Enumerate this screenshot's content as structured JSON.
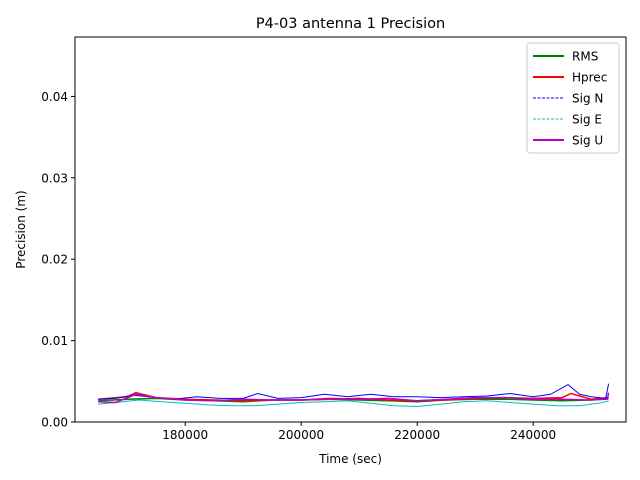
{
  "chart_data": {
    "type": "line",
    "title": "P4-03 antenna 1 Precision",
    "xlabel": "Time (sec)",
    "ylabel": "Precision (m)",
    "xlim": [
      161000,
      256000
    ],
    "ylim": [
      0.0,
      0.0473
    ],
    "x_ticks": [
      180000,
      200000,
      220000,
      240000
    ],
    "y_ticks": [
      0.0,
      0.01,
      0.02,
      0.03,
      0.04
    ],
    "y_tick_labels": [
      "0.00",
      "0.01",
      "0.02",
      "0.03",
      "0.04"
    ],
    "x_tick_labels": [
      "180000",
      "200000",
      "220000",
      "240000"
    ],
    "grid": false,
    "legend_position": "top-right",
    "series": [
      {
        "name": "RMS",
        "color": "#008000",
        "style": "solid",
        "x": [
          165000,
          170000,
          175000,
          180000,
          185000,
          190000,
          195000,
          200000,
          205000,
          210000,
          215000,
          220000,
          225000,
          230000,
          235000,
          240000,
          245000,
          250000,
          253000
        ],
        "y": [
          0.0026,
          0.0028,
          0.0029,
          0.0027,
          0.0026,
          0.0025,
          0.0027,
          0.0027,
          0.0028,
          0.0027,
          0.0026,
          0.0025,
          0.0027,
          0.0028,
          0.0028,
          0.0027,
          0.0026,
          0.0027,
          0.0029
        ]
      },
      {
        "name": "Hprec",
        "color": "#ff0000",
        "style": "solid",
        "x": [
          165000,
          170000,
          171500,
          175000,
          180000,
          185000,
          190000,
          195000,
          200000,
          205000,
          210000,
          215000,
          220000,
          225000,
          230000,
          235000,
          240000,
          245000,
          246500,
          250000,
          253000
        ],
        "y": [
          0.0028,
          0.0031,
          0.0036,
          0.003,
          0.0028,
          0.0027,
          0.0026,
          0.0027,
          0.0027,
          0.0028,
          0.0029,
          0.0027,
          0.0026,
          0.0027,
          0.0029,
          0.003,
          0.0029,
          0.003,
          0.0035,
          0.0028,
          0.003
        ]
      },
      {
        "name": "Sig N",
        "color": "#0000ff",
        "style": "dashed",
        "x": [
          165000,
          168000,
          171000,
          175000,
          178000,
          182000,
          186000,
          190000,
          192500,
          196000,
          200000,
          204000,
          208000,
          212000,
          216000,
          220000,
          224000,
          228000,
          232000,
          236000,
          240000,
          243000,
          246000,
          248000,
          250000,
          252500,
          253000
        ],
        "y": [
          0.0028,
          0.0029,
          0.0033,
          0.003,
          0.0028,
          0.0031,
          0.0029,
          0.0029,
          0.0035,
          0.0029,
          0.003,
          0.0034,
          0.0031,
          0.0034,
          0.0031,
          0.0031,
          0.003,
          0.0031,
          0.0032,
          0.0035,
          0.0031,
          0.0034,
          0.0046,
          0.0034,
          0.0031,
          0.0029,
          0.0047
        ]
      },
      {
        "name": "Sig E",
        "color": "#00bfbf",
        "style": "dashed",
        "x": [
          165000,
          168000,
          172000,
          176000,
          180000,
          184000,
          188000,
          192000,
          196000,
          200000,
          204000,
          208000,
          212000,
          216000,
          220000,
          224000,
          228000,
          232000,
          236000,
          240000,
          244000,
          248000,
          252000,
          253000
        ],
        "y": [
          0.0022,
          0.0024,
          0.0027,
          0.0025,
          0.0023,
          0.0021,
          0.002,
          0.002,
          0.0022,
          0.0024,
          0.0025,
          0.0026,
          0.0023,
          0.002,
          0.0019,
          0.0022,
          0.0025,
          0.0026,
          0.0024,
          0.0022,
          0.002,
          0.002,
          0.0024,
          0.0026
        ]
      },
      {
        "name": "Sig U",
        "color": "#bf00bf",
        "style": "solid",
        "x": [
          165000,
          168000,
          171500,
          175000,
          180000,
          185000,
          190000,
          195000,
          200000,
          205000,
          210000,
          215000,
          220000,
          225000,
          230000,
          235000,
          240000,
          245000,
          250000,
          252800,
          253000
        ],
        "y": [
          0.0025,
          0.0024,
          0.0034,
          0.003,
          0.0027,
          0.0026,
          0.0028,
          0.0027,
          0.0027,
          0.0029,
          0.0028,
          0.0029,
          0.0026,
          0.0028,
          0.003,
          0.003,
          0.0028,
          0.0028,
          0.0027,
          0.0028,
          0.0036
        ]
      }
    ]
  }
}
